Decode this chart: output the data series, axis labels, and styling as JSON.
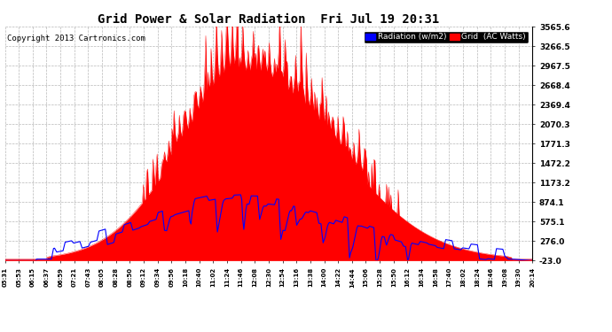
{
  "title": "Grid Power & Solar Radiation  Fri Jul 19 20:31",
  "copyright": "Copyright 2013 Cartronics.com",
  "background_color": "#ffffff",
  "plot_bg_color": "#ffffff",
  "grid_color": "#b0b0b0",
  "yticks": [
    -23.0,
    276.0,
    575.1,
    874.1,
    1173.2,
    1472.2,
    1771.3,
    2070.3,
    2369.4,
    2668.4,
    2967.5,
    3266.5,
    3565.6
  ],
  "ylim": [
    -23.0,
    3565.6
  ],
  "legend_labels": [
    "Radiation (w/m2)",
    "Grid  (AC Watts)"
  ],
  "legend_bg": "#000000",
  "radiation_color": "#ff0000",
  "grid_line_color": "#0000ff",
  "xtick_labels": [
    "05:31",
    "05:53",
    "06:15",
    "06:37",
    "06:59",
    "07:21",
    "07:43",
    "08:05",
    "08:28",
    "08:50",
    "09:12",
    "09:34",
    "09:56",
    "10:18",
    "10:40",
    "11:02",
    "11:24",
    "11:46",
    "12:08",
    "12:30",
    "12:54",
    "13:16",
    "13:38",
    "14:00",
    "14:22",
    "14:44",
    "15:06",
    "15:28",
    "15:50",
    "16:12",
    "16:34",
    "16:58",
    "17:40",
    "18:02",
    "18:24",
    "18:46",
    "19:08",
    "19:30",
    "20:14"
  ]
}
